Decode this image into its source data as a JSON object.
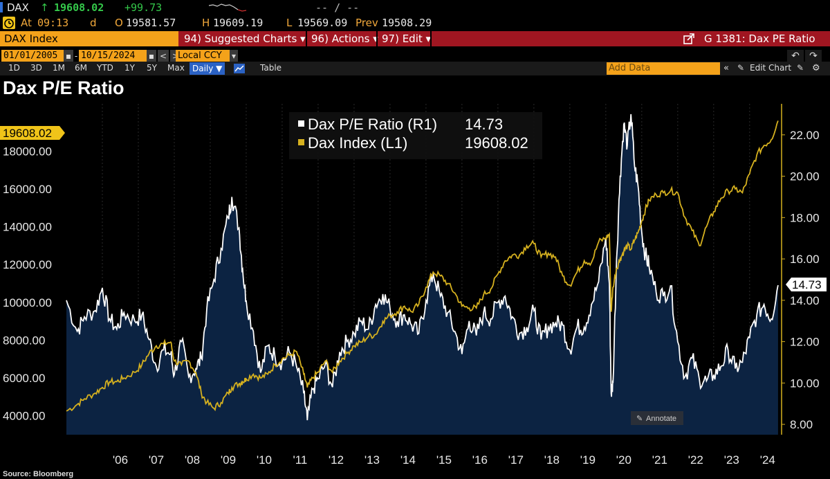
{
  "ticker": {
    "symbol": "DAX",
    "arrow": "↑",
    "last": "19608.02",
    "change": "+99.73",
    "dashes": "-- / --"
  },
  "quote": {
    "at_label": "At",
    "time": "09:13",
    "d": "d",
    "o_label": "O",
    "open": "19581.57",
    "h_label": "H",
    "high": "19609.19",
    "l_label": "L",
    "low": "19569.09",
    "prev_label": "Prev",
    "prev": "19508.29"
  },
  "toolbar": {
    "security": "DAX Index",
    "suggested_charts": "94) Suggested Charts ▾",
    "actions": "96) Actions ▾",
    "edit": "97) Edit ▾",
    "page_title": "G 1381: Dax PE Ratio"
  },
  "range": {
    "start_date": "01/01/2005",
    "end_date": "10/15/2024",
    "currency": "Local CCY"
  },
  "periods": [
    "1D",
    "3D",
    "1M",
    "6M",
    "YTD",
    "1Y",
    "5Y",
    "Max"
  ],
  "frequency": "Daily ▼",
  "table_label": "Table",
  "add_data_placeholder": "Add Data",
  "edit_chart_label": "Edit Chart",
  "colors": {
    "pe_line": "#ffffff",
    "pe_fill": "#0c2342",
    "dax_line": "#d6b11f",
    "label_yellow": "#f0c419",
    "toolbar_red": "#a01621",
    "field_orange": "#f4a21a"
  },
  "footer": {
    "source": "Source: Bloomberg"
  },
  "annotate_label": "Annotate",
  "chart_data": {
    "type": "line",
    "title": "Dax P/E Ratio",
    "x_tick_labels": [
      "'06",
      "'07",
      "'08",
      "'09",
      "'10",
      "'11",
      "'12",
      "'13",
      "'14",
      "'15",
      "'16",
      "'17",
      "'18",
      "'19",
      "'20",
      "'21",
      "'22",
      "'23",
      "'24"
    ],
    "left_axis": {
      "ticks": [
        "4000.00",
        "6000.00",
        "8000.00",
        "10000.00",
        "12000.00",
        "14000.00",
        "16000.00",
        "18000.00"
      ],
      "range": [
        3000,
        20500
      ]
    },
    "right_axis": {
      "ticks": [
        "8.00",
        "10.00",
        "12.00",
        "14.00",
        "16.00",
        "18.00",
        "20.00",
        "22.00"
      ],
      "range": [
        7.5,
        23.5
      ]
    },
    "legend": {
      "pe_label": "Dax P/E Ratio (R1)",
      "pe_value": "14.73",
      "dax_label": "Dax Index (L1)",
      "dax_value": "19608.02"
    },
    "last_labels": {
      "left": "19608.02",
      "right": "14.73"
    },
    "series": [
      {
        "name": "Dax P/E Ratio (R1)",
        "axis": "right",
        "x": [
          2005.0,
          2005.3,
          2005.5,
          2005.8,
          2006.0,
          2006.2,
          2006.4,
          2006.6,
          2006.9,
          2007.1,
          2007.3,
          2007.5,
          2007.7,
          2007.9,
          2008.0,
          2008.2,
          2008.4,
          2008.6,
          2008.75,
          2008.9,
          2009.1,
          2009.3,
          2009.5,
          2009.6,
          2009.8,
          2009.9,
          2010.0,
          2010.2,
          2010.4,
          2010.6,
          2010.8,
          2011.0,
          2011.2,
          2011.4,
          2011.6,
          2011.7,
          2011.85,
          2012.0,
          2012.2,
          2012.4,
          2012.6,
          2012.8,
          2013.0,
          2013.2,
          2013.4,
          2013.6,
          2013.8,
          2014.0,
          2014.2,
          2014.4,
          2014.6,
          2014.8,
          2015.0,
          2015.2,
          2015.4,
          2015.6,
          2015.8,
          2016.0,
          2016.2,
          2016.4,
          2016.6,
          2016.8,
          2017.0,
          2017.2,
          2017.4,
          2017.6,
          2017.8,
          2018.0,
          2018.2,
          2018.4,
          2018.6,
          2018.8,
          2019.0,
          2019.2,
          2019.4,
          2019.6,
          2019.8,
          2020.0,
          2020.1,
          2020.15,
          2020.2,
          2020.3,
          2020.4,
          2020.5,
          2020.6,
          2020.7,
          2020.8,
          2020.9,
          2021.0,
          2021.1,
          2021.2,
          2021.4,
          2021.6,
          2021.8,
          2022.0,
          2022.2,
          2022.4,
          2022.6,
          2022.8,
          2023.0,
          2023.2,
          2023.4,
          2023.6,
          2023.8,
          2024.0,
          2024.2,
          2024.4,
          2024.6,
          2024.79
        ],
        "values": [
          14.0,
          12.5,
          13.2,
          13.5,
          14.6,
          13.1,
          12.6,
          13.4,
          13.0,
          13.3,
          12.1,
          10.8,
          11.6,
          11.4,
          10.4,
          12.0,
          10.3,
          10.7,
          11.2,
          13.5,
          15.0,
          16.5,
          18.0,
          19.0,
          17.5,
          15.5,
          14.0,
          12.5,
          10.5,
          11.8,
          11.3,
          11.0,
          11.5,
          10.8,
          9.5,
          8.2,
          9.7,
          10.2,
          10.9,
          9.8,
          11.5,
          12.0,
          12.4,
          13.0,
          12.6,
          13.8,
          14.3,
          13.6,
          13.0,
          13.3,
          12.8,
          12.4,
          14.0,
          15.3,
          14.2,
          13.4,
          12.5,
          11.4,
          13.0,
          12.3,
          13.4,
          13.1,
          13.9,
          14.2,
          13.2,
          12.4,
          12.7,
          13.5,
          12.1,
          12.7,
          12.9,
          12.8,
          11.6,
          12.7,
          12.7,
          13.8,
          14.9,
          17.0,
          14.8,
          9.5,
          10.0,
          16.0,
          20.0,
          22.5,
          21.5,
          23.0,
          20.5,
          19.5,
          17.3,
          16.2,
          15.7,
          14.4,
          14.2,
          14.7,
          12.0,
          10.3,
          11.2,
          10.2,
          10.1,
          10.4,
          10.8,
          11.6,
          10.7,
          11.0,
          12.2,
          13.3,
          13.8,
          13.1,
          14.73
        ]
      },
      {
        "name": "Dax Index (L1)",
        "axis": "left",
        "x": [
          2005.0,
          2005.3,
          2005.5,
          2005.8,
          2006.0,
          2006.2,
          2006.4,
          2006.6,
          2006.9,
          2007.1,
          2007.3,
          2007.5,
          2007.7,
          2007.9,
          2008.0,
          2008.2,
          2008.4,
          2008.6,
          2008.75,
          2008.9,
          2009.1,
          2009.3,
          2009.5,
          2009.6,
          2009.8,
          2009.9,
          2010.0,
          2010.2,
          2010.4,
          2010.6,
          2010.8,
          2011.0,
          2011.2,
          2011.4,
          2011.6,
          2011.7,
          2011.85,
          2012.0,
          2012.2,
          2012.4,
          2012.6,
          2012.8,
          2013.0,
          2013.2,
          2013.4,
          2013.6,
          2013.8,
          2014.0,
          2014.2,
          2014.4,
          2014.6,
          2014.8,
          2015.0,
          2015.2,
          2015.4,
          2015.6,
          2015.8,
          2016.0,
          2016.2,
          2016.4,
          2016.6,
          2016.8,
          2017.0,
          2017.2,
          2017.4,
          2017.6,
          2017.8,
          2018.0,
          2018.2,
          2018.4,
          2018.6,
          2018.8,
          2019.0,
          2019.2,
          2019.4,
          2019.6,
          2019.8,
          2020.0,
          2020.1,
          2020.15,
          2020.2,
          2020.3,
          2020.4,
          2020.5,
          2020.6,
          2020.7,
          2020.8,
          2020.9,
          2021.0,
          2021.1,
          2021.2,
          2021.4,
          2021.6,
          2021.8,
          2022.0,
          2022.2,
          2022.4,
          2022.6,
          2022.8,
          2023.0,
          2023.2,
          2023.4,
          2023.6,
          2023.8,
          2024.0,
          2024.2,
          2024.4,
          2024.6,
          2024.79
        ],
        "values": [
          4250,
          4600,
          4900,
          5200,
          5500,
          5800,
          5800,
          6000,
          6300,
          6700,
          7300,
          7700,
          7800,
          7900,
          6900,
          6700,
          6900,
          6300,
          5200,
          4700,
          4400,
          4700,
          5200,
          5500,
          5700,
          5800,
          5950,
          6200,
          6000,
          6200,
          6700,
          7000,
          7200,
          7400,
          6200,
          5500,
          6000,
          6300,
          6900,
          6300,
          6900,
          7300,
          7700,
          7900,
          8200,
          8300,
          9000,
          9300,
          9500,
          9800,
          9500,
          9900,
          10800,
          11600,
          11400,
          11000,
          10500,
          9800,
          9700,
          9700,
          10400,
          10700,
          11500,
          12200,
          12500,
          12500,
          13000,
          13100,
          12400,
          12600,
          12400,
          11400,
          10900,
          11600,
          12200,
          12100,
          13200,
          13400,
          13600,
          9500,
          10800,
          11800,
          12300,
          12700,
          13000,
          12800,
          13300,
          13700,
          14300,
          14900,
          15400,
          15700,
          15800,
          15900,
          15800,
          14500,
          13800,
          13000,
          14000,
          14800,
          15500,
          15900,
          16000,
          15800,
          16800,
          17800,
          18300,
          18600,
          19608.02
        ]
      }
    ]
  }
}
